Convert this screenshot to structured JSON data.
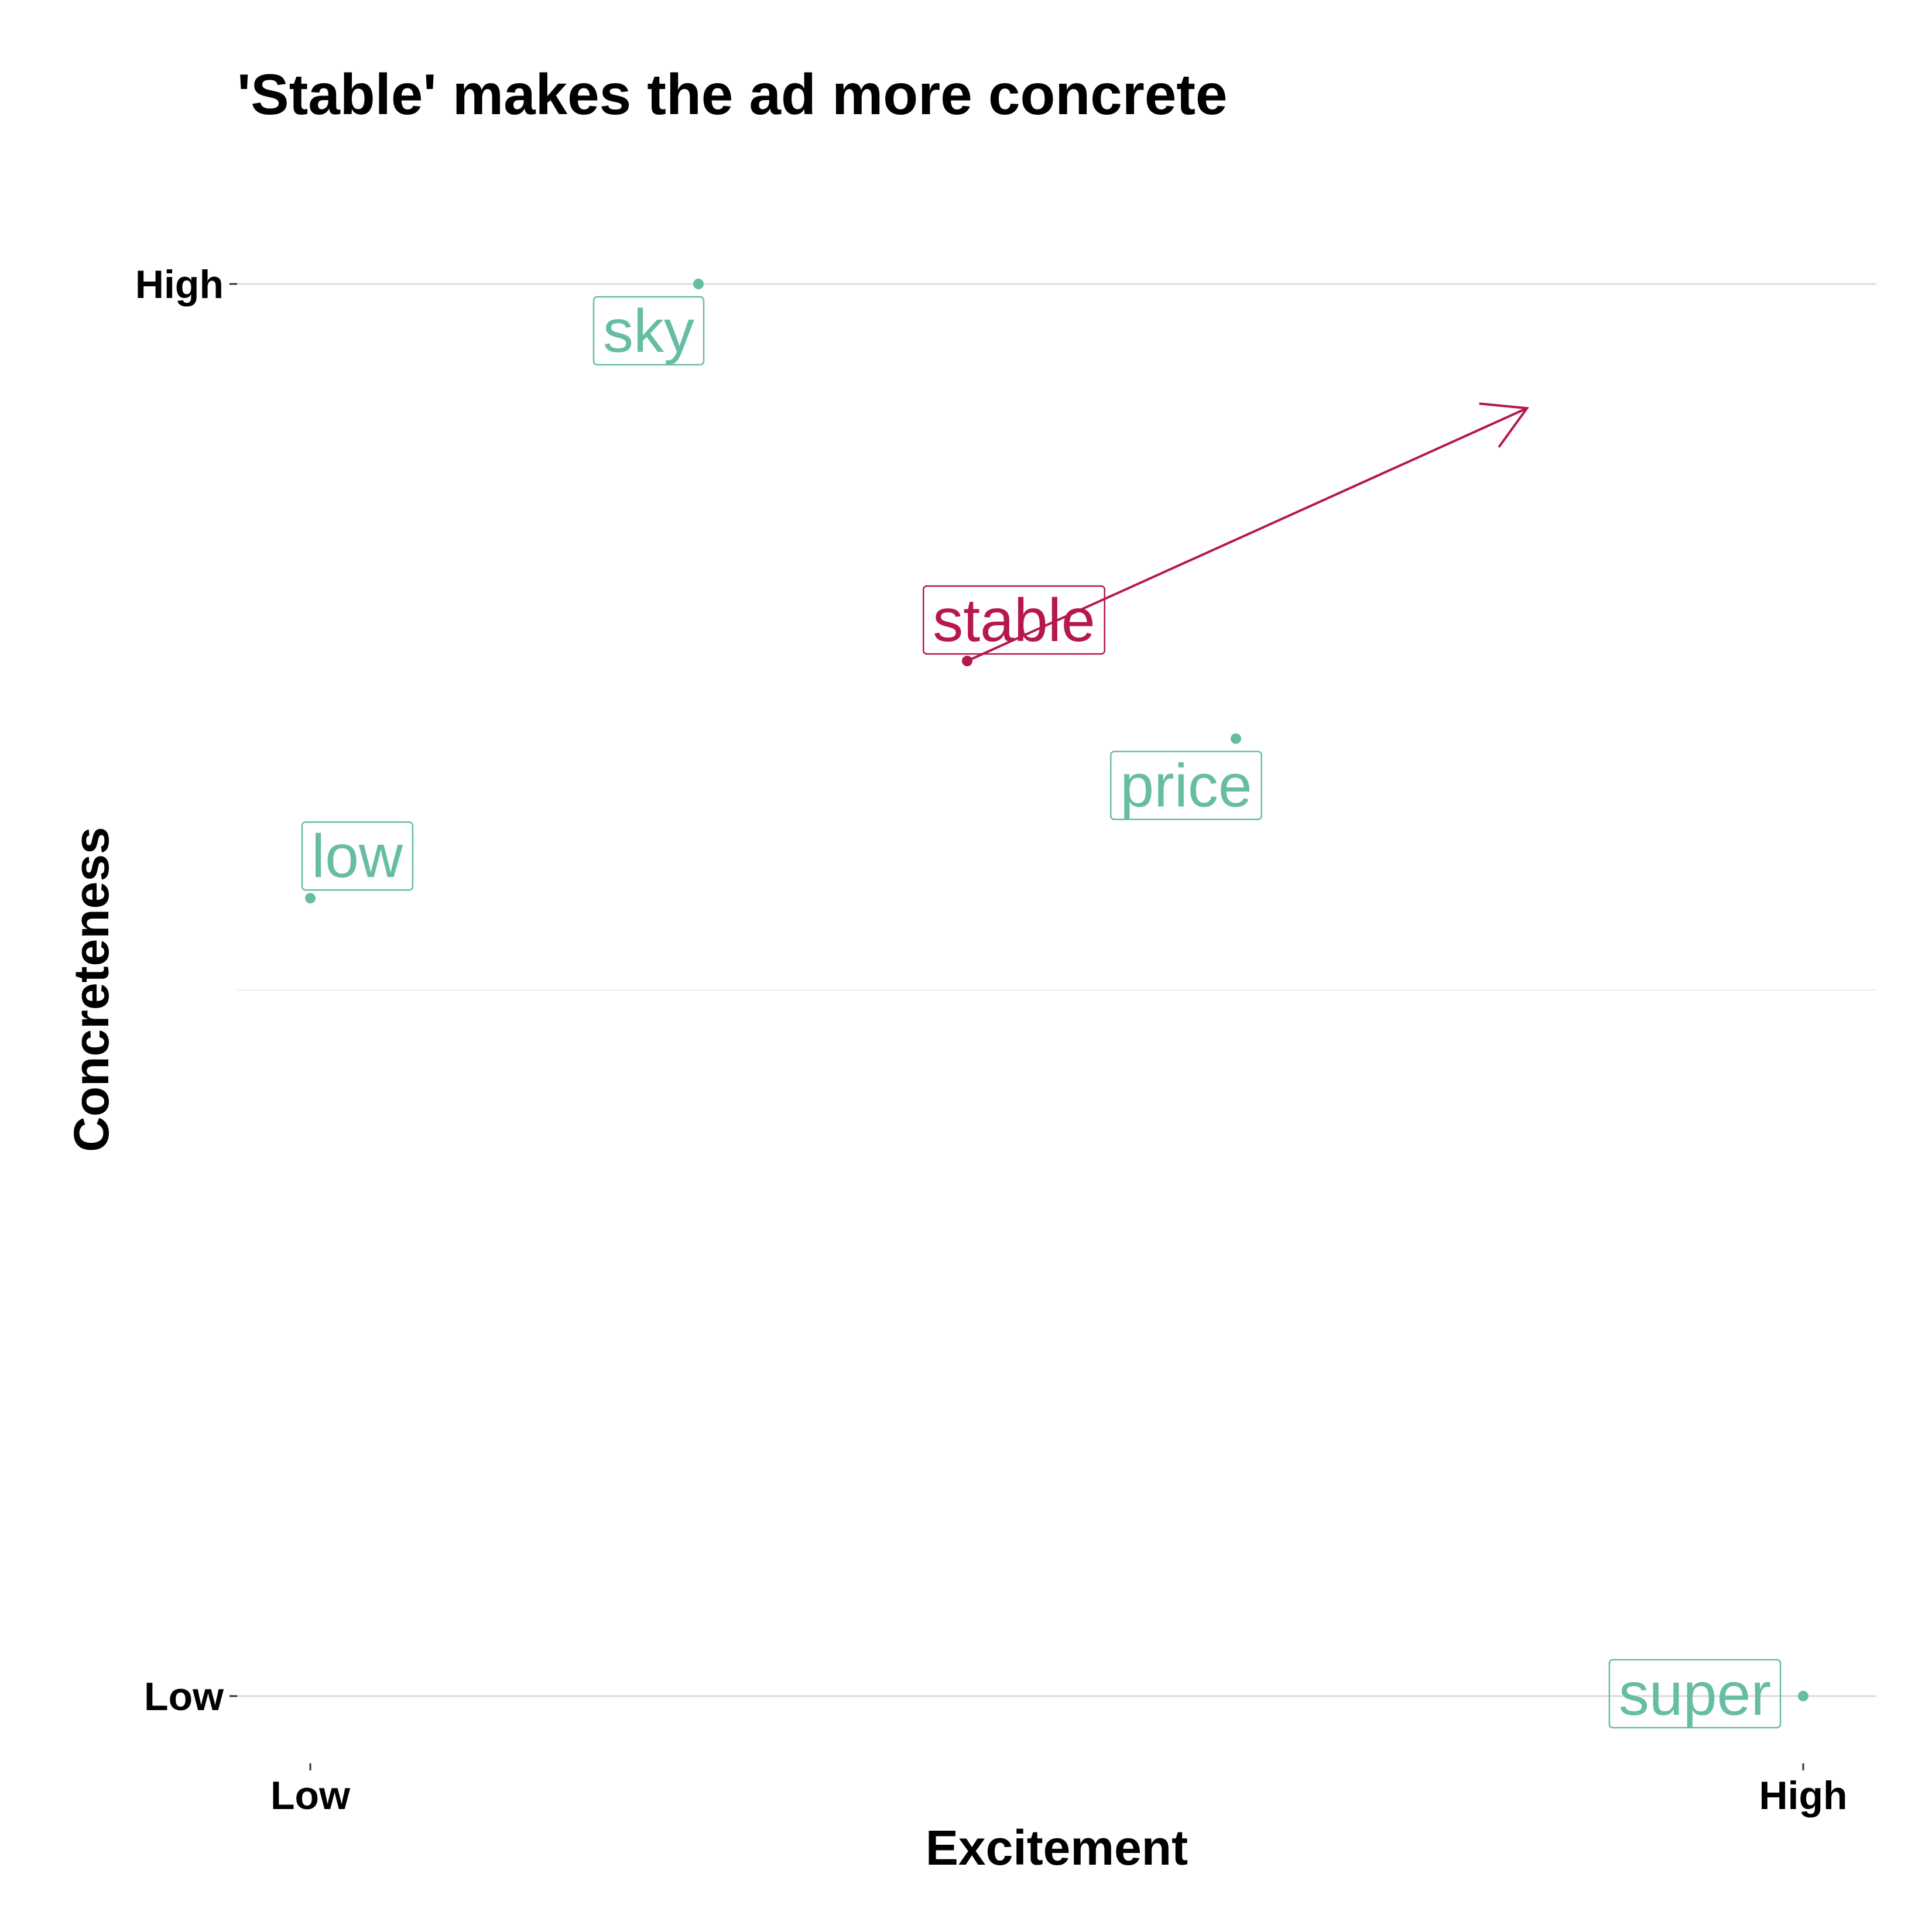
{
  "chart_data": {
    "type": "scatter",
    "title": "'Stable' makes the ad more concrete",
    "xlabel": "Excitement",
    "ylabel": "Concreteness",
    "xlim": [
      0,
      1
    ],
    "ylim": [
      0,
      1
    ],
    "x_ticks": [
      {
        "value": 0,
        "label": "Low"
      },
      {
        "value": 1,
        "label": "High"
      }
    ],
    "y_ticks": [
      {
        "value": 0,
        "label": "Low"
      },
      {
        "value": 1,
        "label": "High"
      }
    ],
    "grid": true,
    "colors": {
      "word": "#66bda4",
      "highlight": "#b5174f",
      "grid": "#dcdcdc",
      "grid_minor": "#ebebeb"
    },
    "points": [
      {
        "label": "sky",
        "x": 0.26,
        "y": 1.0,
        "highlight": false
      },
      {
        "label": "stable",
        "x": 0.44,
        "y": 0.733,
        "highlight": true
      },
      {
        "label": "price",
        "x": 0.62,
        "y": 0.678,
        "highlight": false
      },
      {
        "label": "low",
        "x": 0.0,
        "y": 0.565,
        "highlight": false
      },
      {
        "label": "super",
        "x": 1.0,
        "y": 0.0,
        "highlight": false
      }
    ],
    "arrow": {
      "from": {
        "x": 0.44,
        "y": 0.733
      },
      "to": {
        "x": 0.815,
        "y": 0.912
      },
      "color": "#b5174f"
    }
  }
}
